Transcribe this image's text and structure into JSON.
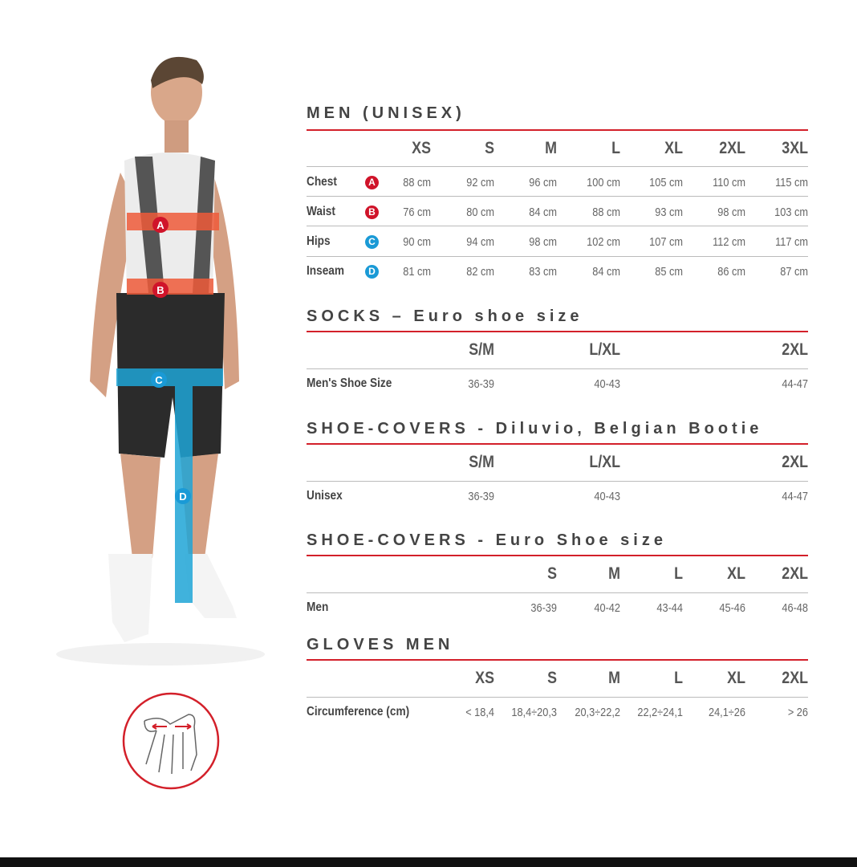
{
  "colors": {
    "accent_red": "#d3202a",
    "badge_red": "#d0142a",
    "badge_blue": "#1a9ad6",
    "band_orange": "#ef5a3a",
    "band_blue": "#1fa4d6"
  },
  "figure": {
    "band_labels": [
      "A",
      "B",
      "C",
      "D"
    ],
    "hand_icon": "hand-circumference-icon"
  },
  "men": {
    "title": "MEN (UNISEX)",
    "sizes": [
      "XS",
      "S",
      "M",
      "L",
      "XL",
      "2XL",
      "3XL"
    ],
    "rows": [
      {
        "label": "Chest",
        "badge": "A",
        "values": [
          "88 cm",
          "92 cm",
          "96 cm",
          "100 cm",
          "105 cm",
          "110 cm",
          "115 cm"
        ]
      },
      {
        "label": "Waist",
        "badge": "B",
        "values": [
          "76 cm",
          "80 cm",
          "84 cm",
          "88 cm",
          "93 cm",
          "98 cm",
          "103 cm"
        ]
      },
      {
        "label": "Hips",
        "badge": "C",
        "values": [
          "90 cm",
          "94 cm",
          "98 cm",
          "102 cm",
          "107 cm",
          "112 cm",
          "117 cm"
        ]
      },
      {
        "label": "Inseam",
        "badge": "D",
        "values": [
          "81 cm",
          "82 cm",
          "83 cm",
          "84 cm",
          "85 cm",
          "86 cm",
          "87 cm"
        ]
      }
    ]
  },
  "socks": {
    "title": "SOCKS – Euro shoe size",
    "sizes": [
      "S/M",
      "L/XL",
      "2XL"
    ],
    "row": {
      "label": "Men's Shoe Size",
      "values": [
        "36-39",
        "40-43",
        "44-47"
      ]
    }
  },
  "shoecovers_diluvio": {
    "title": "SHOE-COVERS - Diluvio, Belgian Bootie",
    "sizes": [
      "S/M",
      "L/XL",
      "2XL"
    ],
    "row": {
      "label": "Unisex",
      "values": [
        "36-39",
        "40-43",
        "44-47"
      ]
    }
  },
  "shoecovers_euro": {
    "title": "SHOE-COVERS - Euro Shoe size",
    "sizes": [
      "S",
      "M",
      "L",
      "XL",
      "2XL"
    ],
    "row": {
      "label": "Men",
      "values": [
        "36-39",
        "40-42",
        "43-44",
        "45-46",
        "46-48"
      ]
    }
  },
  "gloves": {
    "title": "GLOVES MEN",
    "sizes": [
      "XS",
      "S",
      "M",
      "L",
      "XL",
      "2XL"
    ],
    "row": {
      "label": "Circumference (cm)",
      "values": [
        "< 18,4",
        "18,4÷20,3",
        "20,3÷22,2",
        "22,2÷24,1",
        "24,1÷26",
        "> 26"
      ]
    }
  }
}
